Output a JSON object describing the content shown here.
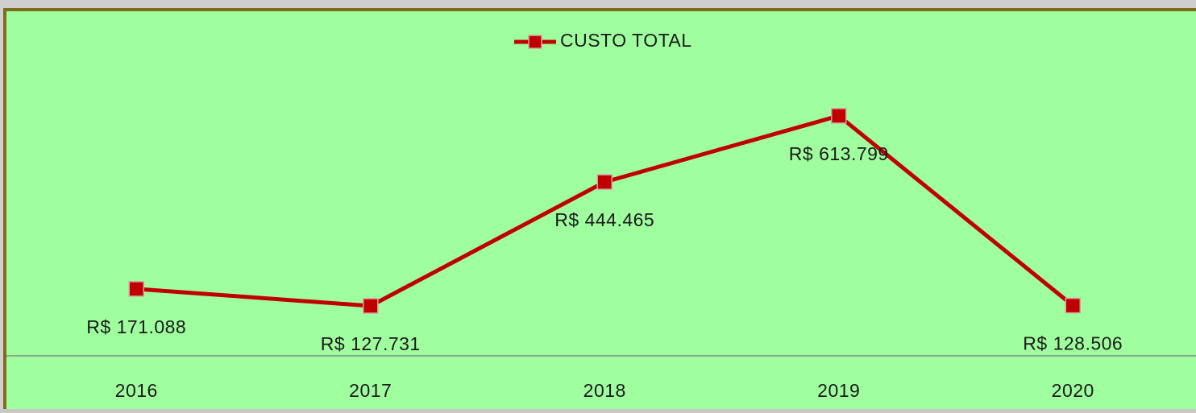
{
  "chart_data": {
    "type": "line",
    "categories": [
      "2016",
      "2017",
      "2018",
      "2019",
      "2020"
    ],
    "series": [
      {
        "name": "CUSTO TOTAL",
        "color": "#c00000",
        "values": [
          171088,
          127731,
          444465,
          613799,
          128506
        ],
        "value_labels": [
          "R$ 171.088",
          "R$ 127.731",
          "R$ 444.465",
          "R$ 613.799",
          "R$ 128.506"
        ]
      }
    ],
    "ylim": [
      0,
      700000
    ],
    "legend": "top"
  }
}
